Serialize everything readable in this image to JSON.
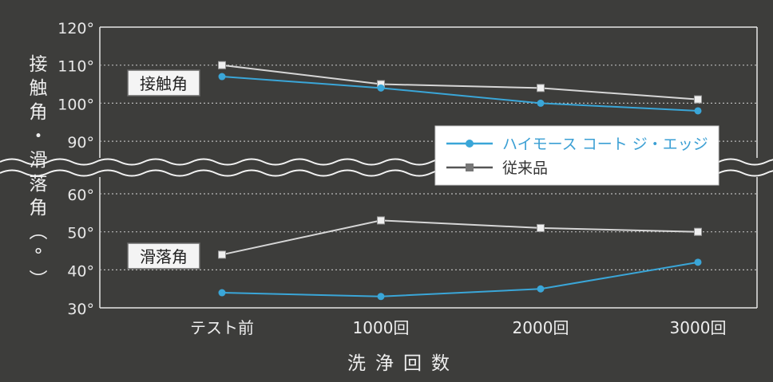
{
  "chart_data": {
    "type": "line",
    "ylabel": "接触角・滑落角(°)",
    "xlabel": "洗浄回数",
    "categories": [
      "テスト前",
      "1000回",
      "2000回",
      "3000回"
    ],
    "y_ticks_upper": [
      "120°",
      "110°",
      "100°",
      "90°"
    ],
    "y_ticks_lower": [
      "60°",
      "50°",
      "40°",
      "30°"
    ],
    "ylim_upper": [
      85,
      120
    ],
    "ylim_lower": [
      30,
      65
    ],
    "broken_axis": true,
    "grid": "horizontal-dotted",
    "legend_position": "right-middle",
    "groups": [
      {
        "label": "接触角",
        "series": [
          {
            "name": "ハイモース コート ジ・エッジ",
            "values": [
              107,
              104,
              100,
              98
            ]
          },
          {
            "name": "従来品",
            "values": [
              110,
              105,
              104,
              101
            ]
          }
        ]
      },
      {
        "label": "滑落角",
        "series": [
          {
            "name": "ハイモース コート ジ・エッジ",
            "values": [
              34,
              33,
              35,
              42
            ]
          },
          {
            "name": "従来品",
            "values": [
              44,
              53,
              51,
              50
            ]
          }
        ]
      }
    ],
    "legend": [
      {
        "name": "ハイモース コート ジ・エッジ",
        "marker": "circle",
        "color": "#3aa6d8"
      },
      {
        "name": "従来品",
        "marker": "square",
        "color": "#cfcfcf"
      }
    ],
    "colors": {
      "background": "#3d3d3b",
      "axis": "#e6e6e6",
      "grid": "#b8b8b8",
      "primary_series": "#3aa6d8",
      "secondary_series": "#d6d6d6",
      "legend_primary_text": "#3a9fd4",
      "legend_secondary_text": "#333333"
    }
  }
}
